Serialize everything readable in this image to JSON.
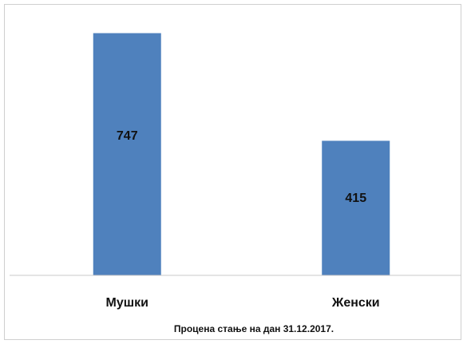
{
  "chart_data": {
    "type": "bar",
    "categories": [
      "Мушки",
      "Женски"
    ],
    "values": [
      747,
      415
    ],
    "data_labels": [
      "747",
      "415"
    ],
    "footnote": "Процена стање на дан 31.12.2017.",
    "xlabel": "",
    "ylabel": "",
    "ylim": [
      0,
      800
    ],
    "grid": false,
    "legend": "none",
    "bar_color": "#4f81bd",
    "axis_color": "#c8c8c8"
  }
}
